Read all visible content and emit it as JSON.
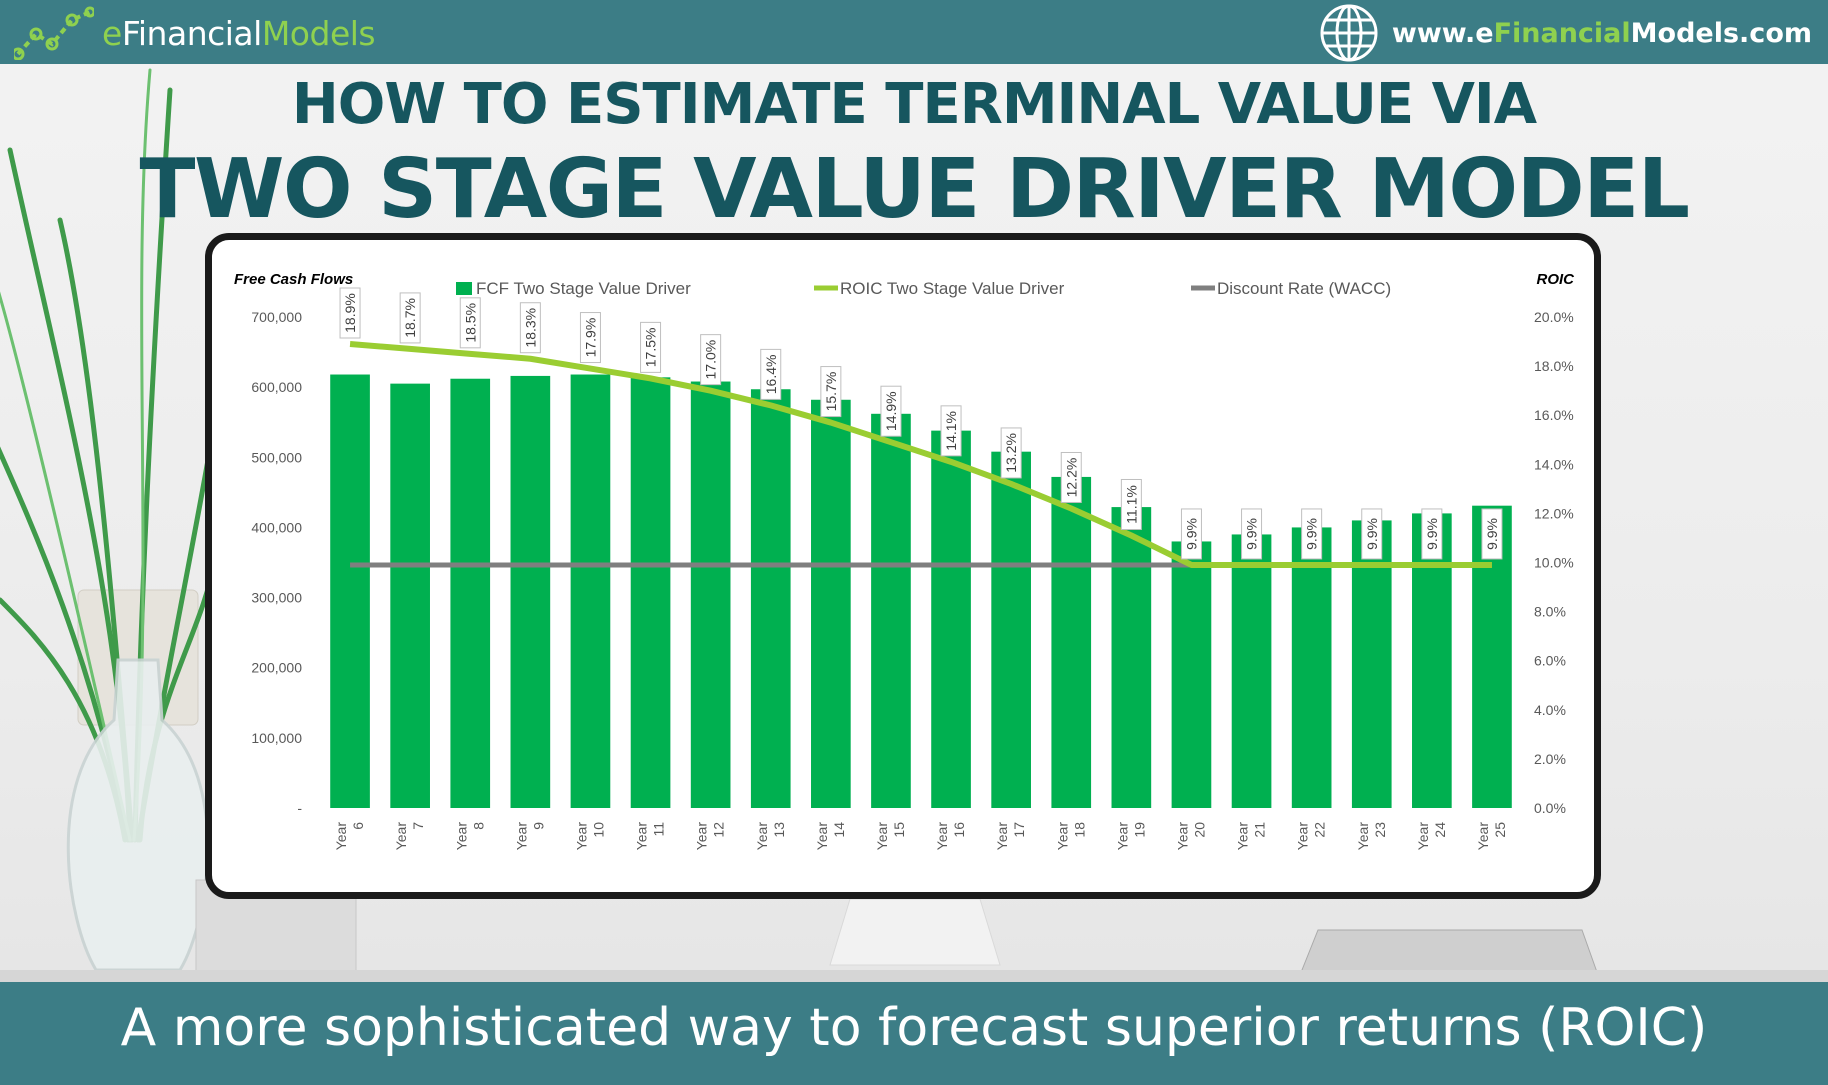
{
  "header": {
    "logo_prefix": "e",
    "logo_main": "Financial",
    "logo_suffix": "Models",
    "site_pre": "www.e",
    "site_hl": "Financial",
    "site_post": "Models.com",
    "globe_icon": "globe-icon",
    "logo_icon": "chart-line-icon"
  },
  "title_line1": "HOW TO ESTIMATE TERMINAL VALUE VIA",
  "title_line2": "TWO STAGE VALUE DRIVER MODEL",
  "tagline": "A more sophisticated way to forecast superior returns (ROIC)",
  "colors": {
    "bar": "#00b050",
    "roic_line": "#9acd32",
    "wacc_line": "#7f7f7f",
    "brand_teal": "#3c7d86",
    "title": "#16565f"
  },
  "chart_data": {
    "type": "bar",
    "left_axis_title": "Free Cash Flows",
    "right_axis_title": "ROIC",
    "legend_placement": "top",
    "grid": false,
    "categories": [
      "Year 6",
      "Year 7",
      "Year 8",
      "Year 9",
      "Year 10",
      "Year 11",
      "Year 12",
      "Year 13",
      "Year 14",
      "Year 15",
      "Year 16",
      "Year 17",
      "Year 18",
      "Year 19",
      "Year 20",
      "Year 21",
      "Year 22",
      "Year 23",
      "Year 24",
      "Year 25"
    ],
    "ylim": [
      0,
      700000
    ],
    "y_ticks": [
      "-",
      "100,000",
      "200,000",
      "300,000",
      "400,000",
      "500,000",
      "600,000",
      "700,000"
    ],
    "y2lim": [
      0,
      20
    ],
    "y2_ticks": [
      "0.0%",
      "2.0%",
      "4.0%",
      "6.0%",
      "8.0%",
      "10.0%",
      "12.0%",
      "14.0%",
      "16.0%",
      "18.0%",
      "20.0%"
    ],
    "series": [
      {
        "name": "FCF Two Stage Value Driver",
        "type": "bar",
        "axis": "left",
        "values": [
          618000,
          605000,
          612000,
          616000,
          618000,
          614000,
          608000,
          597000,
          582000,
          562000,
          538000,
          508000,
          472000,
          429000,
          380000,
          390000,
          400000,
          410000,
          420000,
          431000
        ]
      },
      {
        "name": "ROIC Two Stage Value Driver",
        "type": "line",
        "axis": "right",
        "values": [
          18.9,
          18.7,
          18.5,
          18.3,
          17.9,
          17.5,
          17.0,
          16.4,
          15.7,
          14.9,
          14.1,
          13.2,
          12.2,
          11.1,
          9.9,
          9.9,
          9.9,
          9.9,
          9.9,
          9.9
        ],
        "labels": [
          "18.9%",
          "18.7%",
          "18.5%",
          "18.3%",
          "17.9%",
          "17.5%",
          "17.0%",
          "16.4%",
          "15.7%",
          "14.9%",
          "14.1%",
          "13.2%",
          "12.2%",
          "11.1%",
          "9.9%",
          "9.9%",
          "9.9%",
          "9.9%",
          "9.9%",
          "9.9%"
        ]
      },
      {
        "name": "Discount Rate (WACC)",
        "type": "line",
        "axis": "right",
        "values": [
          9.9,
          9.9,
          9.9,
          9.9,
          9.9,
          9.9,
          9.9,
          9.9,
          9.9,
          9.9,
          9.9,
          9.9,
          9.9,
          9.9,
          9.9,
          9.9,
          9.9,
          9.9,
          9.9,
          9.9
        ]
      }
    ]
  }
}
